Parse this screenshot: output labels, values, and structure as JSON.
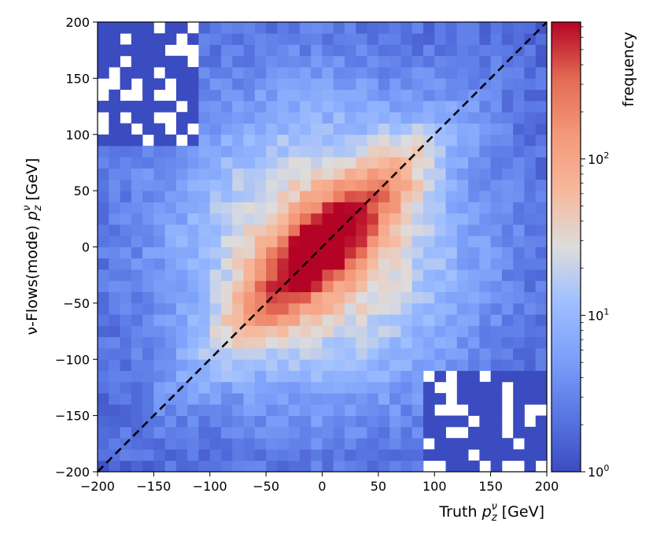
{
  "chart_data": {
    "type": "heatmap",
    "title": "",
    "xlabel": {
      "pre": "Truth ",
      "sym": "p",
      "sub": "z",
      "sup": "ν",
      "post": " [GeV]"
    },
    "ylabel": {
      "pre": "ν-Flows(mode) ",
      "sym": "p",
      "sub": "z",
      "sup": "ν",
      "post": " [GeV]"
    },
    "xlim": [
      -200,
      200
    ],
    "ylim": [
      -200,
      200
    ],
    "bins_x": 40,
    "bins_y": 40,
    "x_ticks": [
      -200,
      -150,
      -100,
      -50,
      0,
      50,
      100,
      150,
      200
    ],
    "y_ticks": [
      -200,
      -150,
      -100,
      -50,
      0,
      50,
      100,
      150,
      200
    ],
    "x_tick_labels": [
      "−200",
      "−150",
      "−100",
      "−50",
      "0",
      "50",
      "100",
      "150",
      "200"
    ],
    "y_tick_labels": [
      "−200",
      "−150",
      "−100",
      "−50",
      "0",
      "50",
      "100",
      "150",
      "200"
    ],
    "color_scale": "log",
    "colormap": "coolwarm",
    "colorbar": {
      "label": "frequency",
      "range": [
        1,
        750
      ],
      "ticks": [
        {
          "value": 1,
          "base": "10",
          "exp": "0"
        },
        {
          "value": 10,
          "base": "10",
          "exp": "1"
        },
        {
          "value": 100,
          "base": "10",
          "exp": "2"
        }
      ]
    },
    "peak_frequency": 750,
    "peak_location": [
      0,
      0
    ],
    "diagonal_reference": {
      "from": [
        -200,
        -200
      ],
      "to": [
        200,
        200
      ],
      "style": "dashed",
      "color": "#000000"
    },
    "empty_bins_color": "#ffffff",
    "empty_regions": [
      "top-left corner",
      "bottom-right corner"
    ]
  }
}
